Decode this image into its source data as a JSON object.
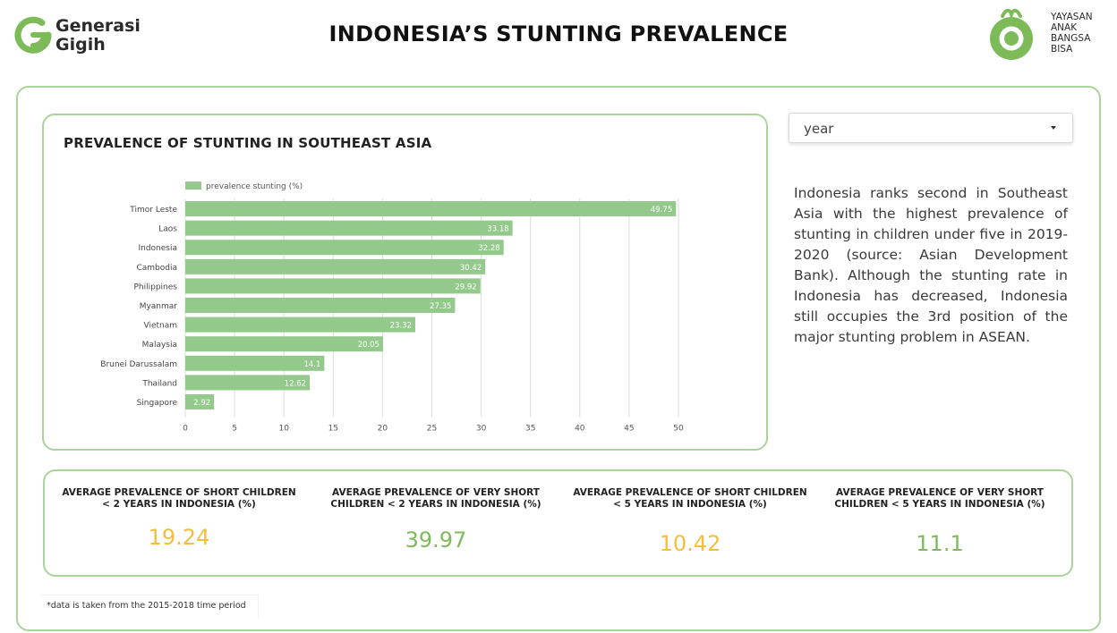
{
  "header": {
    "title": "INDONESIA’S STUNTING PREVALENCE",
    "logo_left": {
      "line1": "Generasi",
      "line2": "Gigih"
    },
    "logo_right": {
      "lines": [
        "YAYASAN",
        "ANAK",
        "BANGSA",
        "BISA"
      ]
    }
  },
  "colors": {
    "accent_green": "#7dbb59",
    "bar_green": "#93c98a",
    "card_border": "#a9d49a",
    "value_yellow": "#f3bd3e"
  },
  "chart_card": {
    "title": "PREVALENCE OF STUNTING IN SOUTHEAST ASIA"
  },
  "chart_data": {
    "type": "bar",
    "orientation": "horizontal",
    "title": "PREVALENCE OF STUNTING IN SOUTHEAST ASIA",
    "categories": [
      "Timor Leste",
      "Laos",
      "Indonesia",
      "Cambodia",
      "Philippines",
      "Myanmar",
      "Vietnam",
      "Malaysia",
      "Brunei Darussalam",
      "Thailand",
      "Singapore"
    ],
    "series": [
      {
        "name": "prevalence stunting (%)",
        "values": [
          49.75,
          33.18,
          32.28,
          30.42,
          29.92,
          27.35,
          23.32,
          20.05,
          14.1,
          12.62,
          2.92
        ]
      }
    ],
    "value_labels": [
      "49.75",
      "33.18",
      "32.28",
      "30.42",
      "29.92",
      "27.35",
      "23.32",
      "20.05",
      "14.1",
      "12.62",
      "2.92"
    ],
    "xticks": [
      "0",
      "5",
      "10",
      "15",
      "20",
      "25",
      "30",
      "35",
      "40",
      "45",
      "50"
    ],
    "xlim": [
      0,
      50
    ],
    "grid": "vertical",
    "legend": "top-left"
  },
  "filter": {
    "label": "year"
  },
  "description": "Indonesia ranks second in Southeast Asia with the highest prevalence of stunting in children under five in 2019-2020 (source: Asian Development Bank). Although the stunting rate in Indonesia has decreased, Indonesia still occupies the 3rd position of the major stunting problem in ASEAN.",
  "stats": [
    {
      "label_line1": "AVERAGE PREVALENCE OF SHORT CHILDREN",
      "label_line2": "< 2 YEARS IN INDONESIA (%)",
      "value": "19.24",
      "color": "yellow"
    },
    {
      "label_line1": "AVERAGE PREVALENCE OF VERY SHORT",
      "label_line2": "CHILDREN < 2 YEARS IN INDONESIA (%)",
      "value": "39.97",
      "color": "green"
    },
    {
      "label_line1": "AVERAGE PREVALENCE OF SHORT CHILDREN",
      "label_line2": "< 5 YEARS IN INDONESIA (%)",
      "value": "10.42",
      "color": "yellow"
    },
    {
      "label_line1": "AVERAGE PREVALENCE OF VERY SHORT",
      "label_line2": "CHILDREN < 5 YEARS IN INDONESIA (%)",
      "value": "11.1",
      "color": "green"
    }
  ],
  "footnote": "*data is taken from the 2015-2018 time period"
}
